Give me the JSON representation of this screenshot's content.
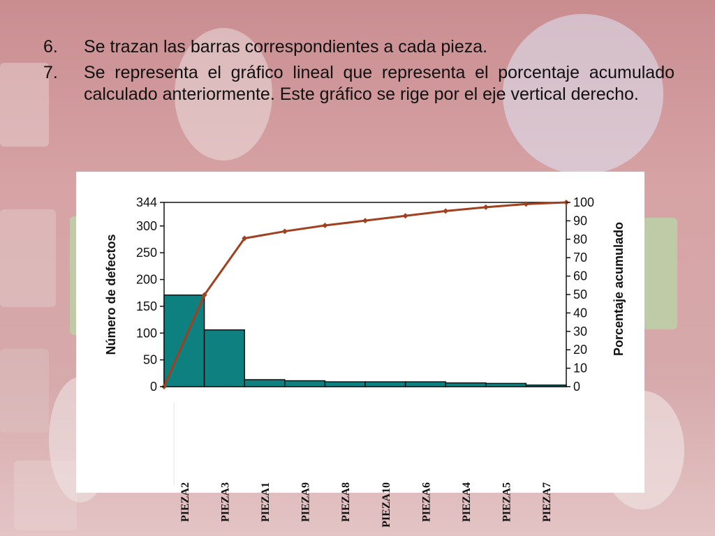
{
  "slide": {
    "items": [
      {
        "number": "6.",
        "text": "Se trazan las barras correspondientes a cada pieza."
      },
      {
        "number": "7.",
        "text": "Se representa el gráfico lineal que representa el porcentaje acumulado calculado anteriormente. Este gráfico se rige por el eje vertical derecho."
      }
    ]
  },
  "colors": {
    "bar_fill": "#0e8080",
    "line": "#a0401f",
    "marker": "#a0401f",
    "grid": "#000000"
  },
  "chart_data": {
    "type": "bar",
    "categories": [
      "PIEZA2",
      "PIEZA3",
      "PIEZA1",
      "PIEZA9",
      "PIEZA8",
      "PIEZA10",
      "PIEZA6",
      "PIEZA4",
      "PIEZA5",
      "PIEZA7"
    ],
    "series": [
      {
        "type": "bar",
        "axis": "left",
        "values": [
          171,
          106,
          13,
          11,
          9,
          9,
          9,
          7,
          6,
          3
        ]
      },
      {
        "type": "line",
        "axis": "right",
        "x": [
          "origin",
          "PIEZA2",
          "PIEZA3",
          "PIEZA1",
          "PIEZA9",
          "PIEZA8",
          "PIEZA10",
          "PIEZA6",
          "PIEZA4",
          "PIEZA5",
          "PIEZA7"
        ],
        "values": [
          0,
          49.7,
          80.5,
          84.3,
          87.5,
          90.1,
          92.7,
          95.3,
          97.4,
          99.1,
          100
        ]
      }
    ],
    "ylabel": "Número de defectos",
    "y2label": "Porcentaje acumulado",
    "ylim": [
      0,
      344
    ],
    "yticks": [
      "0",
      "50",
      "100",
      "150",
      "200",
      "250",
      "300",
      "344"
    ],
    "y2lim": [
      0,
      100
    ],
    "y2ticks": [
      "0",
      "10",
      "20",
      "30",
      "40",
      "50",
      "60",
      "70",
      "80",
      "90",
      "100"
    ],
    "grid": false,
    "legend": "none"
  }
}
